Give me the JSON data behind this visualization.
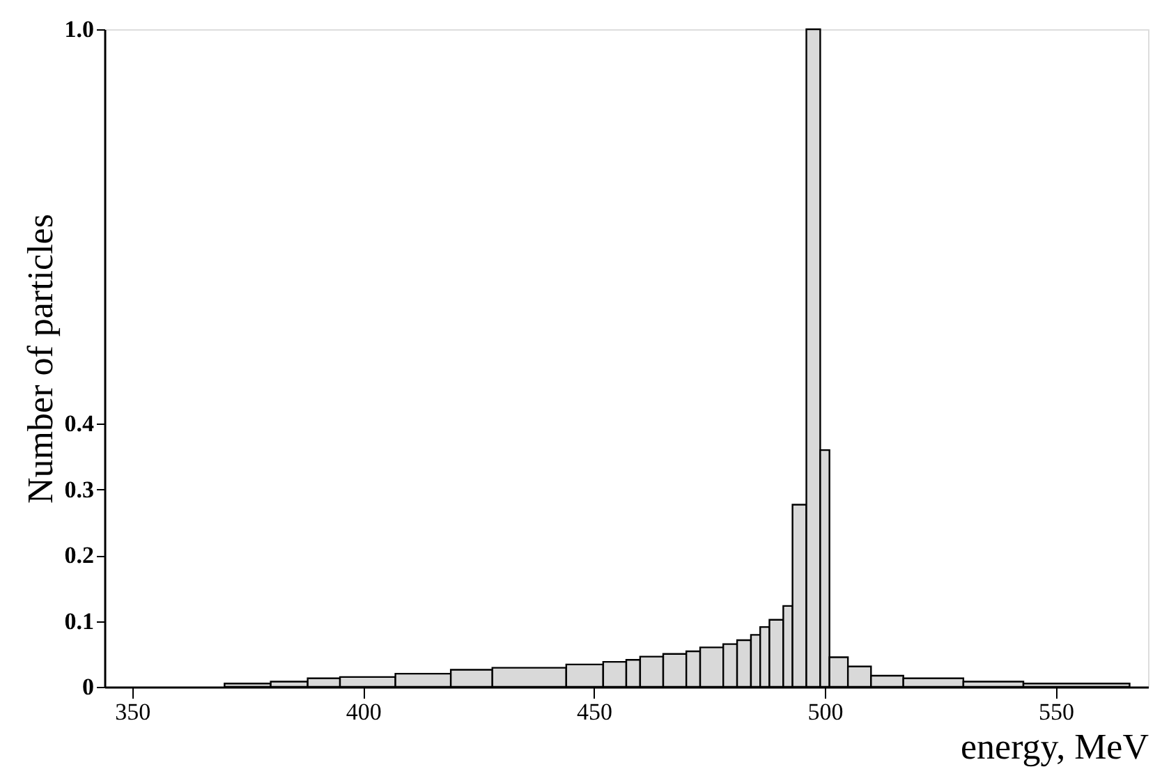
{
  "chart_data": {
    "type": "histogram",
    "xlabel": "energy, MeV",
    "ylabel": "Number of particles",
    "bins": [
      370,
      380,
      388,
      395,
      407,
      419,
      428,
      444,
      452,
      457,
      460,
      465,
      470,
      473,
      478,
      481,
      484,
      486,
      488,
      491,
      493,
      496,
      499,
      501,
      505,
      510,
      517,
      530,
      543,
      566
    ],
    "values": [
      0.005,
      0.008,
      0.013,
      0.015,
      0.02,
      0.026,
      0.029,
      0.034,
      0.038,
      0.041,
      0.046,
      0.05,
      0.054,
      0.06,
      0.065,
      0.071,
      0.079,
      0.091,
      0.102,
      0.123,
      0.277,
      1.0,
      0.36,
      0.045,
      0.031,
      0.017,
      0.013,
      0.008,
      0.005
    ],
    "color": "#d9d9d9",
    "xlim": [
      344,
      570
    ],
    "xticks": [
      350,
      400,
      450,
      500,
      550
    ],
    "ylim": [
      0,
      1.0
    ],
    "yticks": [
      0,
      0.1,
      0.2,
      0.3,
      0.4,
      {
        "value": 1.0,
        "label": "1.0"
      }
    ],
    "grid": false
  }
}
